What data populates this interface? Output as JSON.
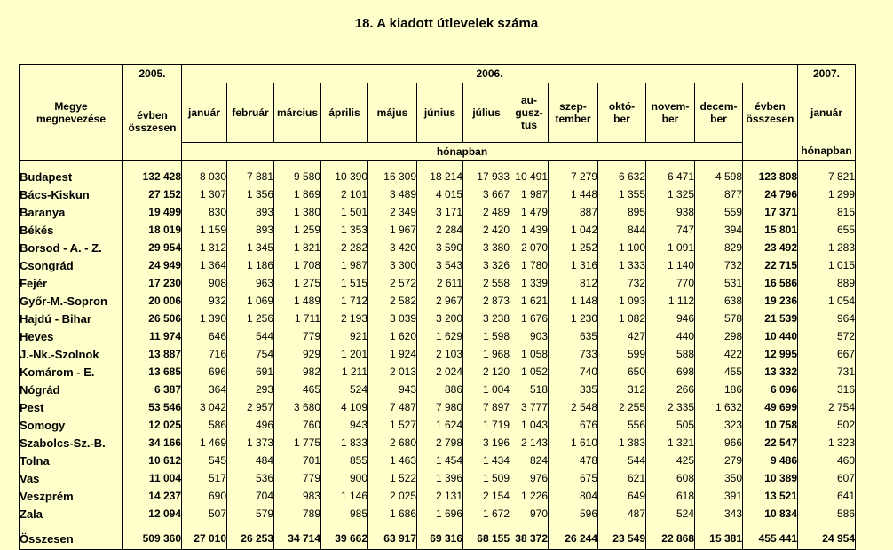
{
  "title": "18. A kiadott útlevelek száma",
  "header": {
    "county_col": "Megye megnevezése",
    "year_2005": "2005.",
    "year_2006": "2006.",
    "year_2007": "2007.",
    "annual_total": "évben összesen",
    "months": [
      "január",
      "február",
      "március",
      "április",
      "május",
      "június",
      "július",
      "augusztus",
      "szeptember",
      "október",
      "november",
      "december"
    ],
    "months_display": [
      "január",
      "február",
      "március",
      "április",
      "május",
      "június",
      "július",
      "au-gusz-tus",
      "szep-tember",
      "októ-ber",
      "novem-ber",
      "decem-ber"
    ],
    "monthly_label": "hónapban",
    "jan_2007": "január"
  },
  "rows": [
    {
      "name": "Budapest",
      "y2005": "132 428",
      "m": [
        "8 030",
        "7 881",
        "9 580",
        "10 390",
        "16 309",
        "18 214",
        "17 933",
        "10 491",
        "7 279",
        "6 632",
        "6 471",
        "4 598"
      ],
      "y2006": "123 808",
      "jan2007": "7 821"
    },
    {
      "name": "Bács-Kiskun",
      "y2005": "27 152",
      "m": [
        "1 307",
        "1 356",
        "1 869",
        "2 101",
        "3 489",
        "4 015",
        "3 667",
        "1 987",
        "1 448",
        "1 355",
        "1 325",
        "877"
      ],
      "y2006": "24 796",
      "jan2007": "1 299"
    },
    {
      "name": "Baranya",
      "y2005": "19 499",
      "m": [
        "830",
        "893",
        "1 380",
        "1 501",
        "2 349",
        "3 171",
        "2 489",
        "1 479",
        "887",
        "895",
        "938",
        "559"
      ],
      "y2006": "17 371",
      "jan2007": "815"
    },
    {
      "name": "Békés",
      "y2005": "18 019",
      "m": [
        "1 159",
        "893",
        "1 259",
        "1 353",
        "1 967",
        "2 284",
        "2 420",
        "1 439",
        "1 042",
        "844",
        "747",
        "394"
      ],
      "y2006": "15 801",
      "jan2007": "655"
    },
    {
      "name": "Borsod - A. - Z.",
      "y2005": "29 954",
      "m": [
        "1 312",
        "1 345",
        "1 821",
        "2 282",
        "3 420",
        "3 590",
        "3 380",
        "2 070",
        "1 252",
        "1 100",
        "1 091",
        "829"
      ],
      "y2006": "23 492",
      "jan2007": "1 283"
    },
    {
      "name": "Csongrád",
      "y2005": "24 949",
      "m": [
        "1 364",
        "1 186",
        "1 708",
        "1 987",
        "3 300",
        "3 543",
        "3 326",
        "1 780",
        "1 316",
        "1 333",
        "1 140",
        "732"
      ],
      "y2006": "22 715",
      "jan2007": "1 015"
    },
    {
      "name": "Fejér",
      "y2005": "17 230",
      "m": [
        "908",
        "963",
        "1 275",
        "1 515",
        "2 572",
        "2 611",
        "2 558",
        "1 339",
        "812",
        "732",
        "770",
        "531"
      ],
      "y2006": "16 586",
      "jan2007": "889"
    },
    {
      "name": "Győr-M.-Sopron",
      "y2005": "20 006",
      "m": [
        "932",
        "1 069",
        "1 489",
        "1 712",
        "2 582",
        "2 967",
        "2 873",
        "1 621",
        "1 148",
        "1 093",
        "1 112",
        "638"
      ],
      "y2006": "19 236",
      "jan2007": "1 054"
    },
    {
      "name": "Hajdú - Bihar",
      "y2005": "26 506",
      "m": [
        "1 390",
        "1 256",
        "1 711",
        "2 193",
        "3 039",
        "3 200",
        "3 238",
        "1 676",
        "1 230",
        "1 082",
        "946",
        "578"
      ],
      "y2006": "21 539",
      "jan2007": "964"
    },
    {
      "name": "Heves",
      "y2005": "11 974",
      "m": [
        "646",
        "544",
        "779",
        "921",
        "1 620",
        "1 629",
        "1 598",
        "903",
        "635",
        "427",
        "440",
        "298"
      ],
      "y2006": "10 440",
      "jan2007": "572"
    },
    {
      "name": "J.-Nk.-Szolnok",
      "y2005": "13 887",
      "m": [
        "716",
        "754",
        "929",
        "1 201",
        "1 924",
        "2 103",
        "1 968",
        "1 058",
        "733",
        "599",
        "588",
        "422"
      ],
      "y2006": "12 995",
      "jan2007": "667"
    },
    {
      "name": "Komárom - E.",
      "y2005": "13 685",
      "m": [
        "696",
        "691",
        "982",
        "1 211",
        "2 013",
        "2 024",
        "2 120",
        "1 052",
        "740",
        "650",
        "698",
        "455"
      ],
      "y2006": "13 332",
      "jan2007": "731"
    },
    {
      "name": "Nógrád",
      "y2005": "6 387",
      "m": [
        "364",
        "293",
        "465",
        "524",
        "943",
        "886",
        "1 004",
        "518",
        "335",
        "312",
        "266",
        "186"
      ],
      "y2006": "6 096",
      "jan2007": "316"
    },
    {
      "name": "Pest",
      "y2005": "53 546",
      "m": [
        "3 042",
        "2 957",
        "3 680",
        "4 109",
        "7 487",
        "7 980",
        "7 897",
        "3 777",
        "2 548",
        "2 255",
        "2 335",
        "1 632"
      ],
      "y2006": "49 699",
      "jan2007": "2 754"
    },
    {
      "name": "Somogy",
      "y2005": "12 025",
      "m": [
        "586",
        "496",
        "760",
        "943",
        "1 527",
        "1 624",
        "1 719",
        "1 043",
        "676",
        "556",
        "505",
        "323"
      ],
      "y2006": "10 758",
      "jan2007": "502"
    },
    {
      "name": "Szabolcs-Sz.-B.",
      "y2005": "34 166",
      "m": [
        "1 469",
        "1 373",
        "1 775",
        "1 833",
        "2 680",
        "2 798",
        "3 196",
        "2 143",
        "1 610",
        "1 383",
        "1 321",
        "966"
      ],
      "y2006": "22 547",
      "jan2007": "1 323"
    },
    {
      "name": "Tolna",
      "y2005": "10 612",
      "m": [
        "545",
        "484",
        "701",
        "855",
        "1 463",
        "1 454",
        "1 434",
        "824",
        "478",
        "544",
        "425",
        "279"
      ],
      "y2006": "9 486",
      "jan2007": "460"
    },
    {
      "name": "Vas",
      "y2005": "11 004",
      "m": [
        "517",
        "536",
        "779",
        "900",
        "1 522",
        "1 396",
        "1 509",
        "976",
        "675",
        "621",
        "608",
        "350"
      ],
      "y2006": "10 389",
      "jan2007": "607"
    },
    {
      "name": "Veszprém",
      "y2005": "14 237",
      "m": [
        "690",
        "704",
        "983",
        "1 146",
        "2 025",
        "2 131",
        "2 154",
        "1 226",
        "804",
        "649",
        "618",
        "391"
      ],
      "y2006": "13 521",
      "jan2007": "641"
    },
    {
      "name": "Zala",
      "y2005": "12 094",
      "m": [
        "507",
        "579",
        "789",
        "985",
        "1 686",
        "1 696",
        "1 672",
        "970",
        "596",
        "487",
        "524",
        "343"
      ],
      "y2006": "10 834",
      "jan2007": "586"
    }
  ],
  "total": {
    "name": "Összesen",
    "y2005": "509 360",
    "m": [
      "27 010",
      "26 253",
      "34 714",
      "39 662",
      "63 917",
      "69 316",
      "68 155",
      "38 372",
      "26 244",
      "23 549",
      "22 868",
      "15 381"
    ],
    "y2006": "455 441",
    "jan2007": "24 954"
  }
}
